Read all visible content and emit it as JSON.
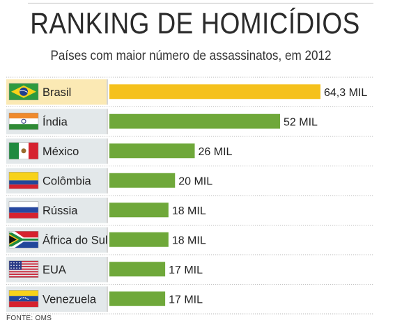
{
  "title": "RANKING DE HOMICÍDIOS",
  "subtitle": "Países com maior número de assassinatos, em 2012",
  "source": "FONTE: OMS",
  "colors": {
    "highlight": "#f5c11c",
    "bar": "#6fa83a",
    "highlight_label_bg": "#fbe9b4",
    "label_bg": "#e3e8ea"
  },
  "chart_data": {
    "type": "bar",
    "orientation": "horizontal",
    "title": "RANKING DE HOMICÍDIOS",
    "subtitle": "Países com maior número de assassinatos, em 2012",
    "unit": "MIL",
    "categories": [
      "Brasil",
      "Índia",
      "México",
      "Colômbia",
      "Rússia",
      "África do Sul",
      "EUA",
      "Venezuela"
    ],
    "values": [
      64.3,
      52,
      26,
      20,
      18,
      18,
      17,
      17
    ],
    "value_labels": [
      "64,3 MIL",
      "52 MIL",
      "26 MIL",
      "20 MIL",
      "18 MIL",
      "18 MIL",
      "17 MIL",
      "17 MIL"
    ],
    "flags": [
      "brazil-flag-icon",
      "india-flag-icon",
      "mexico-flag-icon",
      "colombia-flag-icon",
      "russia-flag-icon",
      "south-africa-flag-icon",
      "usa-flag-icon",
      "venezuela-flag-icon"
    ],
    "highlight": "Brasil",
    "xlim": [
      0,
      64.3
    ],
    "grid": false
  }
}
